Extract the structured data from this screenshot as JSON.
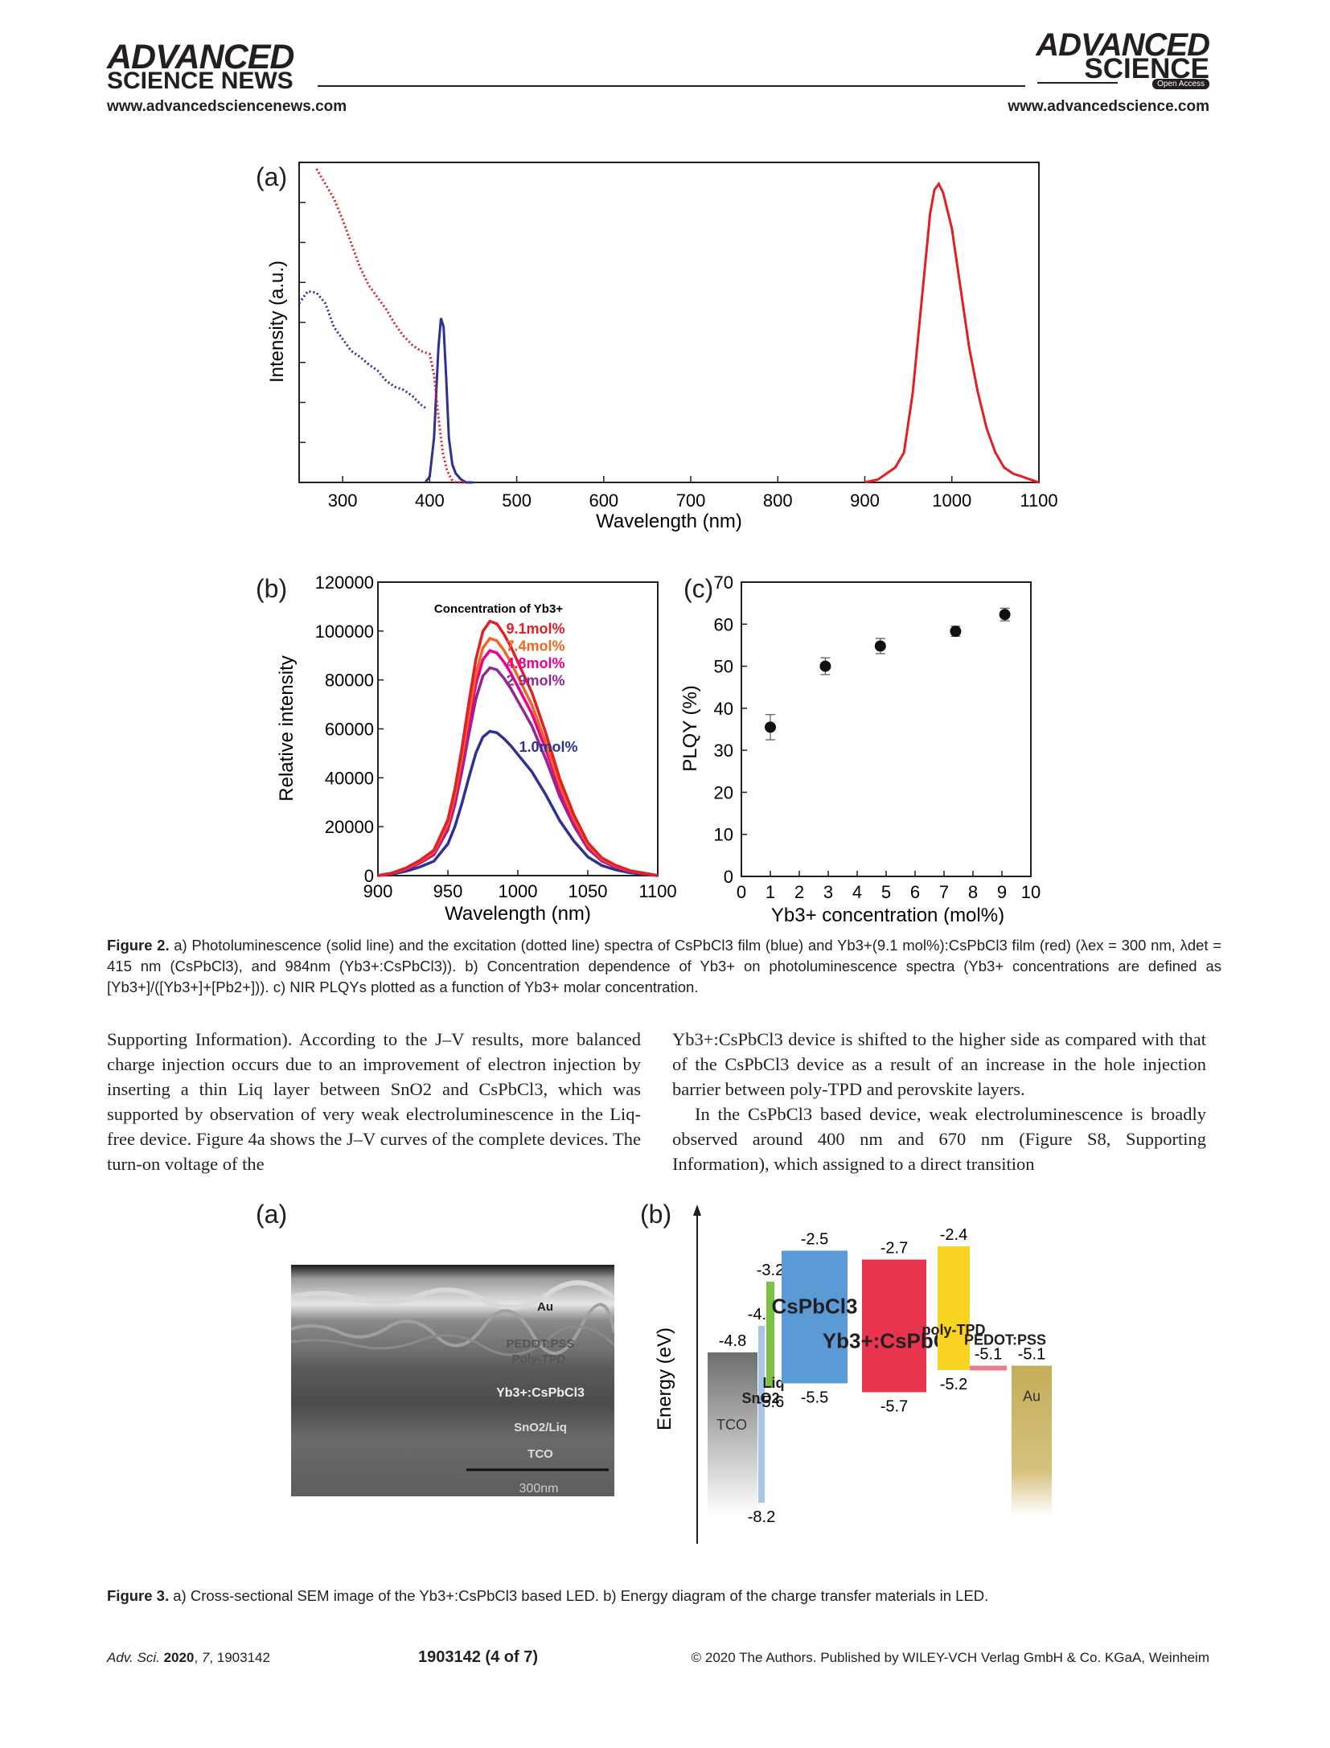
{
  "header": {
    "left_logo_line1": "ADVANCED",
    "left_logo_line2": "SCIENCE NEWS",
    "left_url": "www.advancedsciencenews.com",
    "right_logo_line1": "ADVANCED",
    "right_logo_line2": "SCIENCE",
    "right_logo_badge": "Open Access",
    "right_url": "www.advancedscience.com"
  },
  "figure2": {
    "panel_a_label": "(a)",
    "panel_b_label": "(b)",
    "panel_c_label": "(c)",
    "caption_label": "Figure 2.",
    "caption_text": "a) Photoluminescence (solid line) and the excitation (dotted line) spectra of CsPbCl3 film (blue) and Yb3+(9.1 mol%):CsPbCl3 film (red) (λex = 300 nm, λdet = 415 nm (CsPbCl3), and 984nm (Yb3+:CsPbCl3)). b) Concentration dependence of Yb3+ on photoluminescence spectra (Yb3+ concentrations are defined as [Yb3+]/([Yb3+]+[Pb2+])). c) NIR PLQYs plotted as a function of Yb3+ molar concentration."
  },
  "figure3": {
    "panel_a_label": "(a)",
    "panel_b_label": "(b)",
    "caption_label": "Figure 3.",
    "caption_text": "a) Cross-sectional SEM image of the Yb3+:CsPbCl3 based LED. b) Energy diagram of the charge transfer materials in LED.",
    "sem_labels": [
      "Au",
      "PEDOT:PSS",
      "Poly-TPD",
      "Yb3+:CsPbCl3",
      "SnO2/Liq",
      "TCO"
    ],
    "sem_scale": "300nm"
  },
  "body": {
    "left_column": "Supporting Information). According to the J–V results, more balanced charge injection occurs due to an improvement of electron injection by inserting a thin Liq layer between SnO2 and CsPbCl3, which was supported by observation of very weak electroluminescence in the Liq-free device. Figure 4a shows the J–V curves of the complete devices. The turn-on voltage of the",
    "right_column_p1": "Yb3+:CsPbCl3 device is shifted to the higher side as compared with that of the CsPbCl3 device as a result of an increase in the hole injection barrier between poly-TPD and perovskite layers.",
    "right_column_p2": "In the CsPbCl3 based device, weak electroluminescence is broadly observed around 400 nm and 670 nm (Figure S8, Supporting Information), which assigned to a direct transition"
  },
  "footer": {
    "journal": "Adv. Sci.",
    "year": "2020",
    "volume": "7",
    "article": "1903142",
    "page": "1903142  (4 of 7)",
    "copyright": "© 2020 The Authors. Published by WILEY-VCH Verlag GmbH & Co. KGaA, Weinheim"
  },
  "chart_data": [
    {
      "id": "fig2a",
      "type": "line",
      "xlabel": "Wavelength (nm)",
      "ylabel": "Intensity (a.u.)",
      "xlim": [
        250,
        1100
      ],
      "xticks": [
        "300",
        "400",
        "500",
        "600",
        "700",
        "800",
        "900",
        "1000",
        "1100"
      ],
      "series": [
        {
          "style": "solid",
          "color": "#2e3192",
          "x": [
            395,
            400,
            405,
            410,
            413,
            416,
            419,
            422,
            426,
            430,
            436,
            442,
            450
          ],
          "y": [
            0.0,
            0.02,
            0.15,
            0.45,
            0.55,
            0.52,
            0.35,
            0.15,
            0.06,
            0.03,
            0.01,
            0.0,
            0.0
          ]
        },
        {
          "style": "dotted",
          "color": "#2e3192",
          "x": [
            250,
            260,
            270,
            280,
            290,
            300,
            310,
            320,
            330,
            340,
            350,
            360,
            370,
            380,
            390,
            395
          ],
          "y": [
            0.6,
            0.64,
            0.635,
            0.6,
            0.52,
            0.48,
            0.44,
            0.42,
            0.395,
            0.375,
            0.34,
            0.32,
            0.31,
            0.29,
            0.26,
            0.25
          ]
        },
        {
          "style": "solid",
          "color": "#e31e24",
          "x": [
            900,
            915,
            925,
            935,
            945,
            955,
            965,
            975,
            980,
            985,
            990,
            1000,
            1010,
            1020,
            1030,
            1040,
            1050,
            1060,
            1070,
            1080,
            1090,
            1100
          ],
          "y": [
            0.0,
            0.01,
            0.03,
            0.05,
            0.1,
            0.3,
            0.6,
            0.9,
            0.98,
            1.0,
            0.97,
            0.85,
            0.65,
            0.45,
            0.3,
            0.18,
            0.1,
            0.05,
            0.03,
            0.02,
            0.01,
            0.0
          ]
        },
        {
          "style": "dotted",
          "color": "#e31e24",
          "x": [
            270,
            280,
            290,
            300,
            310,
            320,
            330,
            340,
            350,
            360,
            370,
            380,
            390,
            400,
            405,
            410,
            415,
            420,
            425,
            430,
            440
          ],
          "y": [
            1.2,
            1.0,
            0.95,
            0.88,
            0.8,
            0.72,
            0.66,
            0.62,
            0.58,
            0.53,
            0.49,
            0.46,
            0.44,
            0.43,
            0.36,
            0.22,
            0.1,
            0.04,
            0.01,
            0.0,
            0.0
          ]
        }
      ]
    },
    {
      "id": "fig2b",
      "type": "line",
      "xlabel": "Wavelength (nm)",
      "ylabel": "Relative intensity",
      "xlim": [
        900,
        1100
      ],
      "ylim": [
        0,
        120000
      ],
      "xticks": [
        "900",
        "950",
        "1000",
        "1050",
        "1100"
      ],
      "yticks": [
        "0",
        "20000",
        "40000",
        "60000",
        "80000",
        "100000",
        "120000"
      ],
      "legend_title": "Concentration of Yb3+",
      "x": [
        900,
        910,
        920,
        930,
        940,
        950,
        955,
        960,
        965,
        970,
        975,
        980,
        985,
        990,
        995,
        1000,
        1005,
        1010,
        1015,
        1020,
        1030,
        1040,
        1050,
        1060,
        1070,
        1080,
        1090,
        1100
      ],
      "shape": [
        0.0,
        0.01,
        0.03,
        0.06,
        0.1,
        0.22,
        0.34,
        0.5,
        0.68,
        0.85,
        0.96,
        1.0,
        0.99,
        0.95,
        0.9,
        0.84,
        0.78,
        0.72,
        0.64,
        0.56,
        0.38,
        0.24,
        0.13,
        0.07,
        0.04,
        0.02,
        0.01,
        0.0
      ],
      "series": [
        {
          "name": "9.1mol%",
          "color": "#e31e24",
          "peak": 104000
        },
        {
          "name": "7.4mol%",
          "color": "#f26522",
          "peak": 97000
        },
        {
          "name": "4.8mol%",
          "color": "#ec008c",
          "peak": 92000
        },
        {
          "name": "2.9mol%",
          "color": "#92278f",
          "peak": 85000
        },
        {
          "name": "1.0mol%",
          "color": "#2e3192",
          "peak": 59000
        }
      ]
    },
    {
      "id": "fig2c",
      "type": "scatter",
      "xlabel": "Yb3+ concentration (mol%)",
      "ylabel": "PLQY (%)",
      "xlim": [
        0,
        10
      ],
      "ylim": [
        0,
        70
      ],
      "xticks": [
        "0",
        "1",
        "2",
        "3",
        "4",
        "5",
        "6",
        "7",
        "8",
        "9",
        "10"
      ],
      "yticks": [
        "0",
        "10",
        "20",
        "30",
        "40",
        "50",
        "60",
        "70"
      ],
      "points": [
        {
          "x": 1.0,
          "y": 35.5,
          "err": 3.0
        },
        {
          "x": 2.9,
          "y": 50.0,
          "err": 2.0
        },
        {
          "x": 4.8,
          "y": 54.8,
          "err": 1.8
        },
        {
          "x": 7.4,
          "y": 58.3,
          "err": 1.2
        },
        {
          "x": 9.1,
          "y": 62.3,
          "err": 1.5
        }
      ]
    },
    {
      "id": "fig3b",
      "type": "energy-diagram",
      "ylabel": "Energy (eV)",
      "layers": [
        {
          "name": "TCO",
          "top": -4.8,
          "bottom": null,
          "color": "#8c8c8c",
          "top_label": "-4.8"
        },
        {
          "name": "SnO2",
          "top": -4.2,
          "bottom": -8.2,
          "color": "#a7c6e6",
          "top_label": "-4.2",
          "bottom_label": "-8.2"
        },
        {
          "name": "Liq",
          "top": -3.2,
          "bottom": -5.6,
          "color": "#7cc242",
          "top_label": "-3.2",
          "bottom_label": "-5.6"
        },
        {
          "name": "CsPbCl3",
          "top": -2.5,
          "bottom": -5.5,
          "color": "#5b9bd5",
          "top_label": "-2.5",
          "bottom_label": "-5.5"
        },
        {
          "name": "Yb3+:CsPbCl3",
          "top": -2.7,
          "bottom": -5.7,
          "color": "#e8344e",
          "top_label": "-2.7",
          "bottom_label": "-5.7"
        },
        {
          "name": "poly-TPD",
          "top": -2.4,
          "bottom": -5.2,
          "color": "#f9d423",
          "top_label": "-2.4",
          "bottom_label": "-5.2"
        },
        {
          "name": "PEDOT:PSS",
          "top": -5.1,
          "bottom": -5.1,
          "color": "#ec7c8c",
          "top_label": "-5.1"
        },
        {
          "name": "Au",
          "top": -5.1,
          "bottom": null,
          "color": "#c8b464",
          "top_label": "-5.1"
        }
      ]
    }
  ]
}
